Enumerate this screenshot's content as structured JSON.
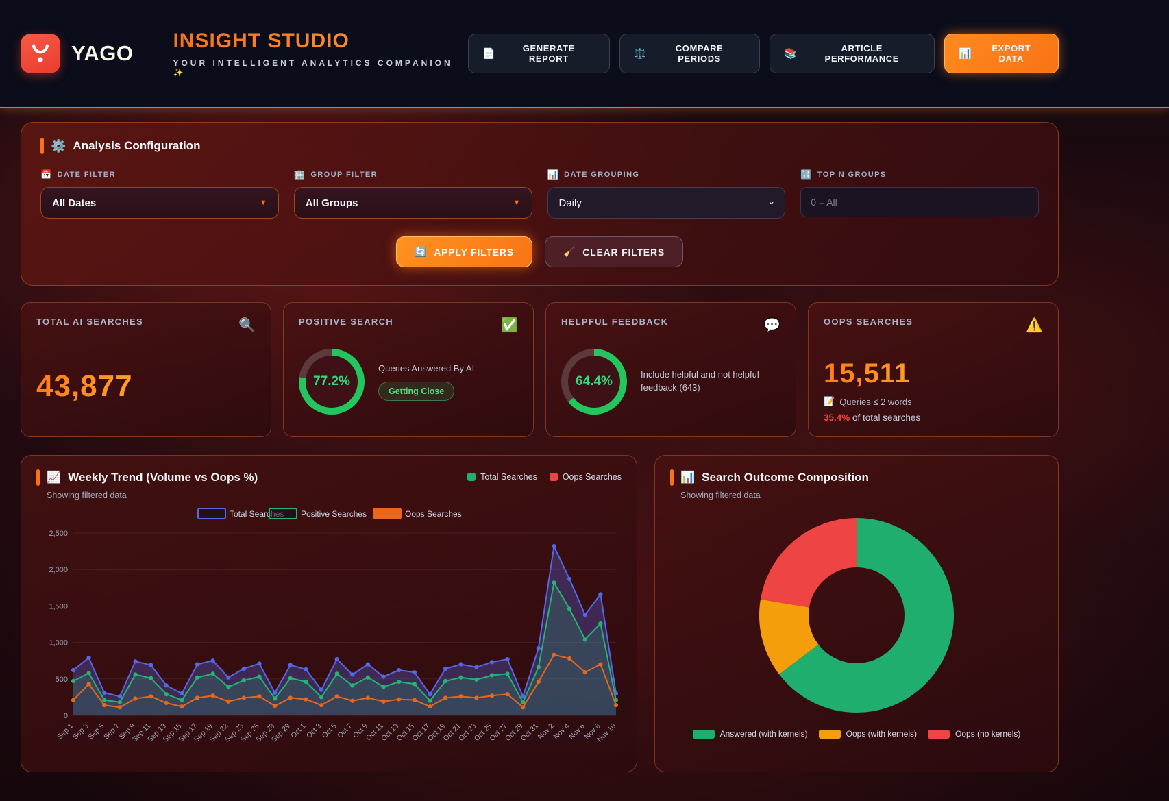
{
  "header": {
    "logo": "YAGO",
    "title": "INSIGHT STUDIO",
    "subtitle": "YOUR INTELLIGENT ANALYTICS COMPANION ✨",
    "actions": [
      {
        "icon": "📄",
        "label": "GENERATE REPORT"
      },
      {
        "icon": "⚖️",
        "label": "COMPARE PERIODS"
      },
      {
        "icon": "📚",
        "label": "ARTICLE PERFORMANCE"
      },
      {
        "icon": "📊",
        "label": "EXPORT DATA"
      }
    ]
  },
  "config": {
    "icon": "⚙️",
    "title": "Analysis Configuration",
    "filters": [
      {
        "icon": "📅",
        "label": "DATE FILTER",
        "value": "All Dates",
        "caret": "▼"
      },
      {
        "icon": "🏢",
        "label": "GROUP FILTER",
        "value": "All Groups",
        "caret": "▼"
      },
      {
        "icon": "📊",
        "label": "DATE GROUPING",
        "value": "Daily",
        "caret": "⌄"
      },
      {
        "icon": "🔢",
        "label": "TOP N GROUPS",
        "placeholder": "0 = All"
      }
    ],
    "apply": {
      "icon": "🔄",
      "label": "APPLY FILTERS"
    },
    "clear": {
      "icon": "🧹",
      "label": "CLEAR FILTERS"
    }
  },
  "stats": {
    "cards": [
      {
        "label": "TOTAL AI SEARCHES",
        "icon": "🔍",
        "value": "43,877"
      },
      {
        "label": "POSITIVE SEARCH",
        "icon": "✅",
        "percent": "77.2%",
        "percent_value": 77.2,
        "description": "Queries Answered By AI",
        "badge": "Getting Close"
      },
      {
        "label": "HELPFUL FEEDBACK",
        "icon": "💬",
        "percent": "64.4%",
        "percent_value": 64.4,
        "description": "Include helpful and not helpful feedback (643)"
      },
      {
        "label": "OOPS SEARCHES",
        "icon": "⚠️",
        "value": "15,511",
        "note_icon": "📝",
        "note": "Queries ≤ 2 words",
        "highlight": "35.4%",
        "highlight_rest": " of total searches"
      }
    ]
  },
  "weekly": {
    "icon": "📈",
    "title": "Weekly Trend (Volume vs Oops %)",
    "subtitle": "Showing filtered data",
    "header_legend": [
      {
        "label": "Total Searches",
        "color": "#1fae6e"
      },
      {
        "label": "Oops Searches",
        "color": "#ef4444"
      }
    ]
  },
  "composition": {
    "icon": "📊",
    "title": "Search Outcome Composition",
    "subtitle": "Showing filtered data"
  },
  "colors": {
    "accent": "#f97316",
    "ring_green": "#22c55e",
    "ring_track": "#5b3a3c",
    "highlight_red": "#f4433c"
  },
  "chart_data": [
    {
      "type": "line",
      "title": "Weekly Trend (Volume vs Oops %)",
      "x": [
        "Sep 1",
        "Sep 3",
        "Sep 5",
        "Sep 7",
        "Sep 9",
        "Sep 11",
        "Sep 13",
        "Sep 15",
        "Sep 17",
        "Sep 19",
        "Sep 22",
        "Sep 23",
        "Sep 25",
        "Sep 28",
        "Sep 29",
        "Oct 1",
        "Oct 3",
        "Oct 5",
        "Oct 7",
        "Oct 9",
        "Oct 11",
        "Oct 13",
        "Oct 15",
        "Oct 17",
        "Oct 19",
        "Oct 21",
        "Oct 23",
        "Oct 25",
        "Oct 27",
        "Oct 29",
        "Oct 31",
        "Nov 2",
        "Nov 4",
        "Nov 6",
        "Nov 8",
        "Nov 10"
      ],
      "series": [
        {
          "name": "Total Searches",
          "color": "#5468e7",
          "fill": "rgba(84,104,231,0.32)",
          "values": [
            620,
            790,
            310,
            260,
            740,
            690,
            410,
            300,
            700,
            750,
            520,
            640,
            710,
            310,
            690,
            630,
            350,
            770,
            560,
            700,
            530,
            620,
            590,
            290,
            640,
            700,
            660,
            730,
            770,
            260,
            920,
            2320,
            1870,
            1380,
            1660,
            300
          ]
        },
        {
          "name": "Positive Searches",
          "color": "#22b573",
          "fill": "rgba(34,181,115,0.20)",
          "values": [
            470,
            580,
            210,
            180,
            560,
            510,
            290,
            210,
            520,
            570,
            390,
            480,
            530,
            230,
            510,
            460,
            250,
            570,
            410,
            520,
            390,
            460,
            430,
            200,
            470,
            520,
            490,
            550,
            570,
            180,
            660,
            1820,
            1460,
            1040,
            1260,
            210
          ]
        },
        {
          "name": "Oops Searches",
          "color": "#e8671b",
          "fill": "none",
          "values": [
            210,
            430,
            140,
            110,
            230,
            260,
            170,
            120,
            240,
            270,
            190,
            240,
            260,
            130,
            240,
            220,
            140,
            260,
            200,
            240,
            190,
            220,
            210,
            120,
            240,
            260,
            240,
            270,
            290,
            110,
            460,
            830,
            780,
            590,
            700,
            140
          ]
        }
      ],
      "ylim": [
        0,
        2500
      ],
      "ytick_step": 500,
      "grid": true,
      "legend_position": "top"
    },
    {
      "type": "pie",
      "title": "Search Outcome Composition",
      "labels": [
        "Answered (with kernels)",
        "Oops (with kernels)",
        "Oops (no kernels)"
      ],
      "values": [
        64.6,
        13.0,
        22.4
      ],
      "unit": "percent",
      "colors": [
        "#1fae6e",
        "#f59e0b",
        "#ef4444"
      ],
      "legend_position": "bottom",
      "donut": true
    }
  ]
}
